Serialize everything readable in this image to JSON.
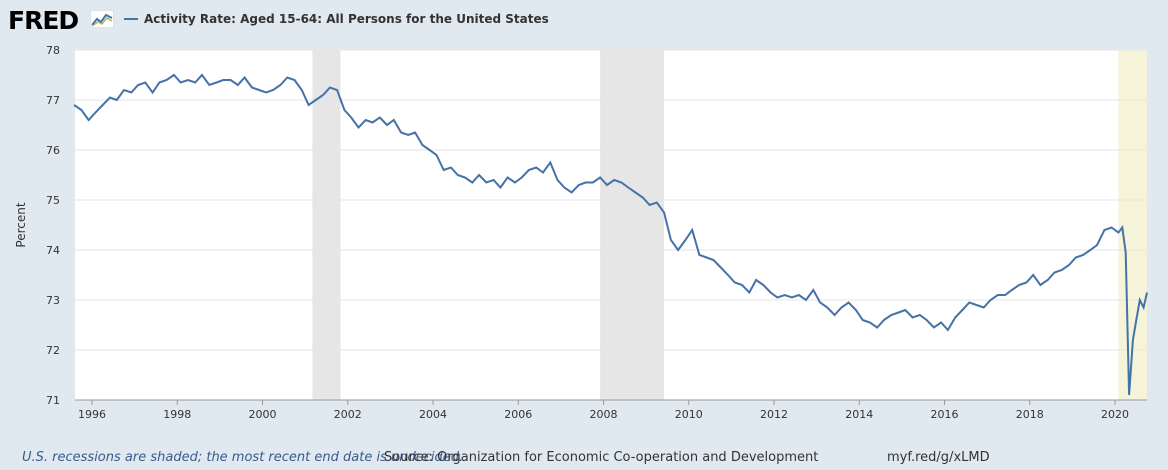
{
  "brand": {
    "name": "FRED"
  },
  "colors": {
    "series": "#4572a7",
    "recession": "#e6e6e6",
    "highlight": "#f5f3d8",
    "background": "#e1e9f0"
  },
  "footer": {
    "recession_note": "U.S. recessions are shaded; the most recent end date is undecided.",
    "source": "Source: Organization for Economic Co-operation and Development",
    "url": "myf.red/g/xLMD"
  },
  "chart_data": {
    "type": "line",
    "title": "Activity Rate: Aged 15-64: All Persons for the United States",
    "ylabel": "Percent",
    "xlabel": "",
    "xlim": [
      1995.6,
      2020.75
    ],
    "ylim": [
      71,
      78
    ],
    "yticks": [
      71,
      72,
      73,
      74,
      75,
      76,
      77,
      78
    ],
    "xticks": [
      1996,
      1998,
      2000,
      2002,
      2004,
      2006,
      2008,
      2010,
      2012,
      2014,
      2016,
      2018,
      2020
    ],
    "grid": true,
    "legend": "top-left",
    "shaded_periods": [
      {
        "start": 2001.17,
        "end": 2001.83,
        "kind": "recession"
      },
      {
        "start": 2007.92,
        "end": 2009.42,
        "kind": "recession"
      },
      {
        "start": 2020.08,
        "end": 2020.75,
        "kind": "current"
      }
    ],
    "series": [
      {
        "name": "Activity Rate: Aged 15-64: All Persons for the United States",
        "x": [
          1995.58,
          1995.75,
          1995.92,
          1996.08,
          1996.25,
          1996.42,
          1996.58,
          1996.75,
          1996.92,
          1997.08,
          1997.25,
          1997.42,
          1997.58,
          1997.75,
          1997.92,
          1998.08,
          1998.25,
          1998.42,
          1998.58,
          1998.75,
          1998.92,
          1999.08,
          1999.25,
          1999.42,
          1999.58,
          1999.75,
          1999.92,
          2000.08,
          2000.25,
          2000.42,
          2000.58,
          2000.75,
          2000.92,
          2001.08,
          2001.25,
          2001.42,
          2001.58,
          2001.75,
          2001.92,
          2002.08,
          2002.25,
          2002.42,
          2002.58,
          2002.75,
          2002.92,
          2003.08,
          2003.25,
          2003.42,
          2003.58,
          2003.75,
          2003.92,
          2004.08,
          2004.25,
          2004.42,
          2004.58,
          2004.75,
          2004.92,
          2005.08,
          2005.25,
          2005.42,
          2005.58,
          2005.75,
          2005.92,
          2006.08,
          2006.25,
          2006.42,
          2006.58,
          2006.75,
          2006.92,
          2007.08,
          2007.25,
          2007.42,
          2007.58,
          2007.75,
          2007.92,
          2008.08,
          2008.25,
          2008.42,
          2008.58,
          2008.75,
          2008.92,
          2009.08,
          2009.25,
          2009.42,
          2009.58,
          2009.75,
          2009.92,
          2010.08,
          2010.25,
          2010.42,
          2010.58,
          2010.75,
          2010.92,
          2011.08,
          2011.25,
          2011.42,
          2011.58,
          2011.75,
          2011.92,
          2012.08,
          2012.25,
          2012.42,
          2012.58,
          2012.75,
          2012.92,
          2013.08,
          2013.25,
          2013.42,
          2013.58,
          2013.75,
          2013.92,
          2014.08,
          2014.25,
          2014.42,
          2014.58,
          2014.75,
          2014.92,
          2015.08,
          2015.25,
          2015.42,
          2015.58,
          2015.75,
          2015.92,
          2016.08,
          2016.25,
          2016.42,
          2016.58,
          2016.75,
          2016.92,
          2017.08,
          2017.25,
          2017.42,
          2017.58,
          2017.75,
          2017.92,
          2018.08,
          2018.25,
          2018.42,
          2018.58,
          2018.75,
          2018.92,
          2019.08,
          2019.25,
          2019.42,
          2019.58,
          2019.75,
          2019.92,
          2020.08,
          2020.17,
          2020.25,
          2020.33,
          2020.42,
          2020.5,
          2020.58,
          2020.67,
          2020.75
        ],
        "values": [
          76.9,
          76.8,
          76.6,
          76.75,
          76.9,
          77.05,
          77.0,
          77.2,
          77.15,
          77.3,
          77.35,
          77.15,
          77.35,
          77.4,
          77.5,
          77.35,
          77.4,
          77.35,
          77.5,
          77.3,
          77.35,
          77.4,
          77.4,
          77.3,
          77.45,
          77.25,
          77.2,
          77.15,
          77.2,
          77.3,
          77.45,
          77.4,
          77.2,
          76.9,
          77.0,
          77.1,
          77.25,
          77.2,
          76.8,
          76.65,
          76.45,
          76.6,
          76.55,
          76.65,
          76.5,
          76.6,
          76.35,
          76.3,
          76.35,
          76.1,
          76.0,
          75.9,
          75.6,
          75.65,
          75.5,
          75.45,
          75.35,
          75.5,
          75.35,
          75.4,
          75.25,
          75.45,
          75.35,
          75.45,
          75.6,
          75.65,
          75.55,
          75.75,
          75.4,
          75.25,
          75.15,
          75.3,
          75.35,
          75.35,
          75.45,
          75.3,
          75.4,
          75.35,
          75.25,
          75.15,
          75.05,
          74.9,
          74.95,
          74.75,
          74.2,
          74.0,
          74.2,
          74.4,
          73.9,
          73.85,
          73.8,
          73.65,
          73.5,
          73.35,
          73.3,
          73.15,
          73.4,
          73.3,
          73.15,
          73.05,
          73.1,
          73.05,
          73.1,
          73.0,
          73.2,
          72.95,
          72.85,
          72.7,
          72.85,
          72.95,
          72.8,
          72.6,
          72.55,
          72.45,
          72.6,
          72.7,
          72.75,
          72.8,
          72.65,
          72.7,
          72.6,
          72.45,
          72.55,
          72.4,
          72.65,
          72.8,
          72.95,
          72.9,
          72.85,
          73.0,
          73.1,
          73.1,
          73.2,
          73.3,
          73.35,
          73.5,
          73.3,
          73.4,
          73.55,
          73.6,
          73.7,
          73.85,
          73.9,
          74.0,
          74.1,
          74.4,
          74.45,
          74.35,
          74.45,
          73.95,
          71.1,
          72.2,
          72.6,
          73.0,
          72.85,
          73.15
        ]
      }
    ]
  }
}
